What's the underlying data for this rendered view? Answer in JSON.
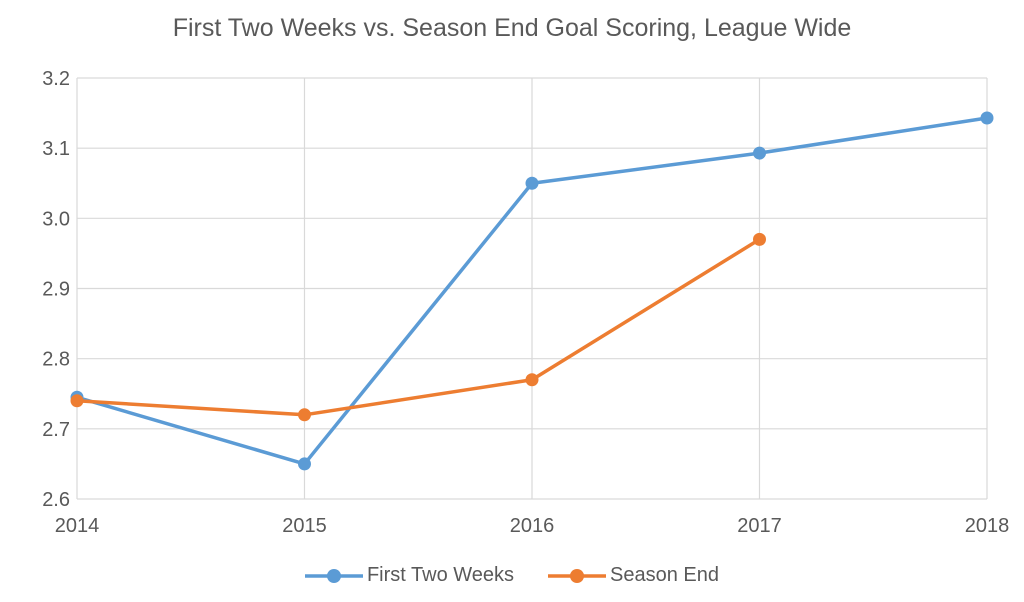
{
  "chart_data": {
    "type": "line",
    "title": "First Two Weeks vs. Season End Goal Scoring, League Wide",
    "xlabel": "",
    "ylabel": "",
    "x": [
      "2014",
      "2015",
      "2016",
      "2017",
      "2018"
    ],
    "ylim": [
      2.6,
      3.2
    ],
    "yticks": [
      "2.6",
      "2.7",
      "2.8",
      "2.9",
      "3.0",
      "3.1",
      "3.2"
    ],
    "grid": true,
    "legend_position": "bottom",
    "series": [
      {
        "name": "First Two Weeks",
        "color": "#5B9BD5",
        "values": [
          2.745,
          2.65,
          3.05,
          3.093,
          3.143
        ]
      },
      {
        "name": "Season End",
        "color": "#ED7D31",
        "values": [
          2.74,
          2.72,
          2.77,
          2.97,
          null
        ]
      }
    ]
  }
}
